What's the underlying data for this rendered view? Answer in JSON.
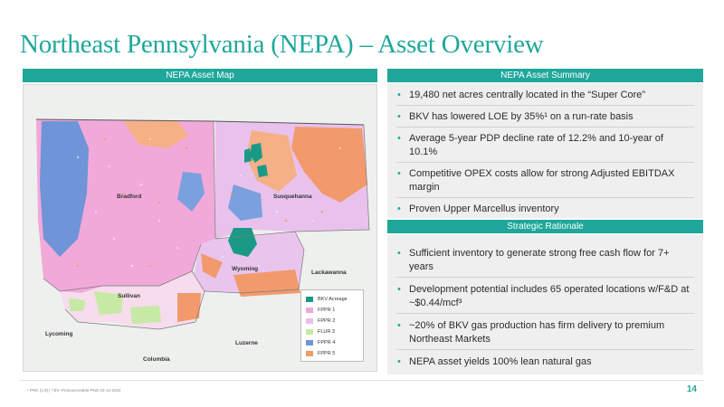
{
  "page": {
    "title": "Northeast Pennsylvania (NEPA) – Asset Overview",
    "page_number": "14",
    "footnote": "¹ PNG (1,9) | ³ BV- Pronounceable PNG 02-12-2024"
  },
  "map_section": {
    "header": "NEPA Asset Map",
    "counties": {
      "bradford": "Bradford",
      "susquehanna": "Susquehanna",
      "wyoming": "Wyoming",
      "lackawanna": "Lackawanna",
      "sullivan": "Sullivan",
      "lycoming": "Lycoming",
      "luzerne": "Luzerne",
      "columbia": "Columbia"
    },
    "legend": [
      {
        "label": "BKV Acreage",
        "color": "#1a9a86"
      },
      {
        "label": "FPPR 1",
        "color": "#f0a8d8"
      },
      {
        "label": "FPPR 2",
        "color": "#e8c0ea"
      },
      {
        "label": "FLUR 3",
        "color": "#c6e9a4"
      },
      {
        "label": "FPPR 4",
        "color": "#6f94d8"
      },
      {
        "label": "FPPR 5",
        "color": "#f29a6c"
      }
    ]
  },
  "summary_section": {
    "header": "NEPA Asset Summary",
    "bullets": [
      "19,480 net acres centrally located in the “Super Core”",
      "BKV has lowered LOE by 35%¹ on a run-rate basis",
      "Average 5-year PDP decline rate of 12.2% and 10-year of 10.1%",
      "Competitive OPEX costs allow for strong Adjusted EBITDAX margin",
      "Proven Upper Marcellus inventory"
    ]
  },
  "rationale_section": {
    "header": "Strategic Rationale",
    "bullets": [
      "Sufficient inventory to generate strong free cash flow for 7+ years",
      "Development potential includes 65 operated locations w/F&D at ~$0.44/mcf³",
      " ~20% of BKV gas production has firm delivery to premium Northeast Markets",
      "NEPA asset yields 100% lean natural gas"
    ]
  },
  "colors": {
    "accent": "#1fa79a",
    "panel_bg": "#efefef"
  }
}
